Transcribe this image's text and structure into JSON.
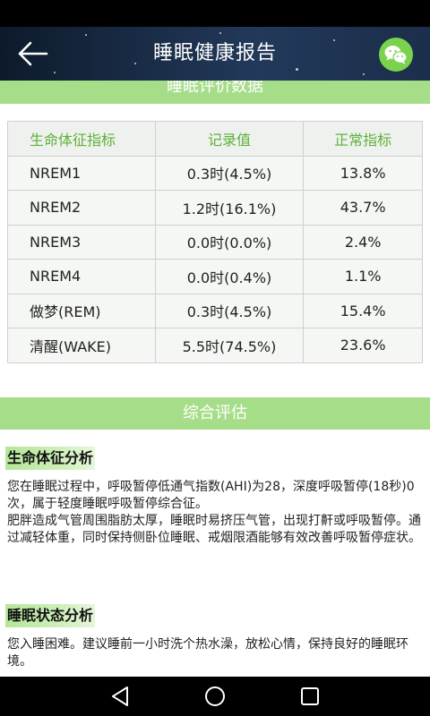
{
  "app_bar": {
    "title": "睡眠健康报告",
    "back_icon": "back-arrow-icon",
    "share_icon": "wechat-icon"
  },
  "sections": {
    "data_title": "睡眠评价数据",
    "assessment_title": "综合评估"
  },
  "table": {
    "headers": [
      "生命体征指标",
      "记录值",
      "正常指标"
    ],
    "rows": [
      {
        "indicator": "NREM1",
        "recorded": "0.3时(4.5%)",
        "normal": "13.8%"
      },
      {
        "indicator": "NREM2",
        "recorded": "1.2时(16.1%)",
        "normal": "43.7%"
      },
      {
        "indicator": "NREM3",
        "recorded": "0.0时(0.0%)",
        "normal": "2.4%"
      },
      {
        "indicator": "NREM4",
        "recorded": "0.0时(0.4%)",
        "normal": "1.1%"
      },
      {
        "indicator": "做梦(REM)",
        "recorded": "0.3时(4.5%)",
        "normal": "15.4%"
      },
      {
        "indicator": "清醒(WAKE)",
        "recorded": "5.5时(74.5%)",
        "normal": "23.6%"
      }
    ]
  },
  "vital_analysis": {
    "heading": "生命体征分析",
    "text": "您在睡眠过程中，呼吸暂停低通气指数(AHI)为28，深度呼吸暂停(18秒)0次，属于轻度睡眠呼吸暂停综合征。\n肥胖造成气管周围脂肪太厚，睡眠时易挤压气管，出现打鼾或呼吸暂停。通过减轻体重，同时保持侧卧位睡眠、戒烟限酒能够有效改善呼吸暂停症状。"
  },
  "sleep_analysis": {
    "heading": "睡眠状态分析",
    "text": "您入睡困难。建议睡前一小时洗个热水澡，放松心情，保持良好的睡眠环境。"
  },
  "nav": {
    "back_icon": "nav-back-triangle-icon",
    "home_icon": "nav-home-circle-icon",
    "recents_icon": "nav-recents-square-icon"
  },
  "colors": {
    "accent_green": "#a6dd88",
    "header_text_green": "#5fb13a",
    "wechat_green": "#7bd34d"
  }
}
